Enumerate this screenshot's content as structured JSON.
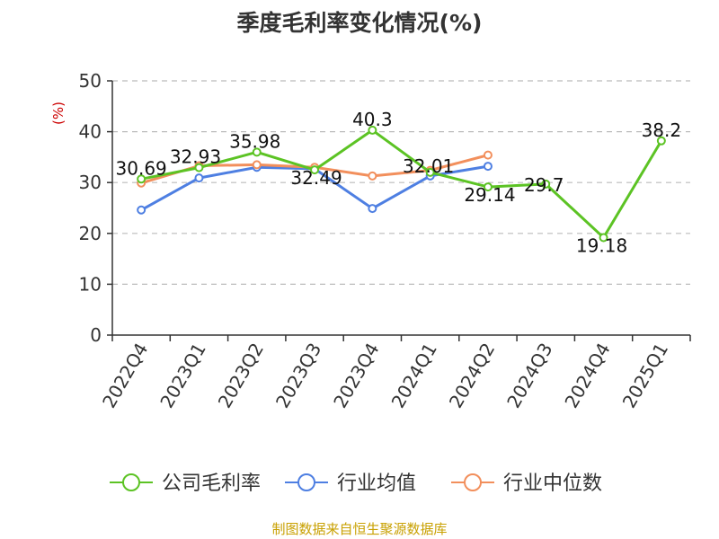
{
  "chart_data": {
    "type": "line",
    "title": "季度毛利率变化情况(%)",
    "ylabel": "(%)",
    "xlabel": "",
    "ylim": [
      0,
      50
    ],
    "yticks": [
      0,
      10,
      20,
      30,
      40,
      50
    ],
    "grid": true,
    "legend_position": "bottom",
    "categories": [
      "2022Q4",
      "2023Q1",
      "2023Q2",
      "2023Q3",
      "2023Q4",
      "2024Q1",
      "2024Q2",
      "2024Q3",
      "2024Q4",
      "2025Q1"
    ],
    "series": [
      {
        "name": "公司毛利率",
        "color": "#5cc324",
        "values": [
          30.69,
          32.93,
          35.98,
          32.49,
          40.3,
          32.01,
          29.14,
          29.7,
          19.18,
          38.2
        ],
        "labels": [
          "30.69",
          "32.93",
          "35.98",
          "32.49",
          "40.3",
          "32.01",
          "29.14",
          "29.7",
          "19.18",
          "38.2"
        ]
      },
      {
        "name": "行业均值",
        "color": "#4e7fe2",
        "values": [
          24.6,
          30.9,
          33.0,
          32.7,
          24.9,
          31.3,
          33.2,
          null,
          null,
          null
        ]
      },
      {
        "name": "行业中位数",
        "color": "#f28f5c",
        "values": [
          29.9,
          33.3,
          33.5,
          33.0,
          31.3,
          32.4,
          35.4,
          null,
          null,
          null
        ]
      }
    ]
  },
  "source": "制图数据来自恒生聚源数据库",
  "colors": {
    "ylabel": "#cc0000",
    "source": "#c8a000",
    "grid": "#bbbbbb",
    "axis": "#333333"
  }
}
